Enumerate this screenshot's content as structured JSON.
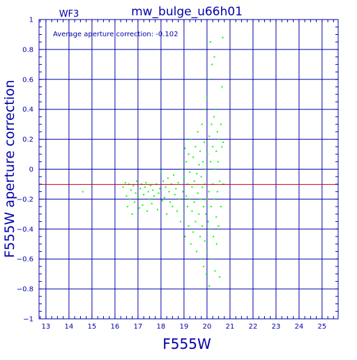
{
  "chart_data": {
    "type": "scatter",
    "title": "mw_bulge_u66h01",
    "subtitle": "WF3",
    "xlabel": "F555W",
    "ylabel": "F555W aperture correction",
    "annotation": "Average aperture correction: -0.102",
    "xlim": [
      12.7,
      25.7
    ],
    "ylim": [
      -1,
      1
    ],
    "xticks": [
      13,
      14,
      15,
      16,
      17,
      18,
      19,
      20,
      21,
      22,
      23,
      24,
      25
    ],
    "yticks": [
      -1,
      -0.8,
      -0.6,
      -0.4,
      -0.2,
      0,
      0.2,
      0.4,
      0.6,
      0.8,
      1
    ],
    "ytick_labels": [
      "−1",
      "−0.8",
      "−0.6",
      "−0.4",
      "−0.2",
      "0",
      "0.2",
      "0.4",
      "0.6",
      "0.8",
      "1"
    ],
    "grid": true,
    "reference_line": {
      "y": -0.102,
      "color": "#cc0000"
    },
    "colors": {
      "axes": "#0000aa",
      "points": "#00ff00",
      "reference": "#cc0000"
    },
    "series": [
      {
        "points": [
          [
            14.6,
            -0.15
          ],
          [
            16.35,
            -0.12
          ],
          [
            16.45,
            -0.09
          ],
          [
            16.5,
            -0.18
          ],
          [
            16.55,
            -0.25
          ],
          [
            16.6,
            -0.1
          ],
          [
            16.65,
            -0.2
          ],
          [
            16.7,
            -0.14
          ],
          [
            16.75,
            -0.3
          ],
          [
            16.8,
            -0.11
          ],
          [
            16.85,
            -0.22
          ],
          [
            16.9,
            -0.16
          ],
          [
            16.95,
            -0.08
          ],
          [
            17.0,
            -0.19
          ],
          [
            17.05,
            -0.26
          ],
          [
            17.1,
            -0.13
          ],
          [
            17.15,
            -0.1
          ],
          [
            17.2,
            -0.24
          ],
          [
            17.25,
            -0.17
          ],
          [
            17.3,
            -0.12
          ],
          [
            17.35,
            -0.09
          ],
          [
            17.4,
            -0.28
          ],
          [
            17.45,
            -0.15
          ],
          [
            17.5,
            -0.2
          ],
          [
            17.55,
            -0.11
          ],
          [
            17.6,
            -0.23
          ],
          [
            17.65,
            -0.14
          ],
          [
            17.7,
            -0.18
          ],
          [
            17.8,
            -0.1
          ],
          [
            17.85,
            -0.27
          ],
          [
            17.9,
            -0.16
          ],
          [
            17.95,
            -0.13
          ],
          [
            18.0,
            -0.02
          ],
          [
            18.05,
            -0.21
          ],
          [
            18.1,
            -0.08
          ],
          [
            18.15,
            -0.19
          ],
          [
            18.2,
            -0.12
          ],
          [
            18.25,
            -0.3
          ],
          [
            18.3,
            -0.06
          ],
          [
            18.35,
            -0.15
          ],
          [
            18.4,
            -0.22
          ],
          [
            18.45,
            -0.1
          ],
          [
            18.5,
            -0.25
          ],
          [
            18.55,
            -0.04
          ],
          [
            18.6,
            -0.17
          ],
          [
            18.65,
            -0.13
          ],
          [
            18.7,
            -0.28
          ],
          [
            18.75,
            -0.09
          ],
          [
            18.8,
            -0.2
          ],
          [
            18.85,
            -0.35
          ],
          [
            18.9,
            0.0
          ],
          [
            18.95,
            -0.15
          ],
          [
            19.0,
            -0.05
          ],
          [
            19.0,
            -0.3
          ],
          [
            19.05,
            0.14
          ],
          [
            19.05,
            -0.45
          ],
          [
            19.1,
            -0.18
          ],
          [
            19.1,
            0.05
          ],
          [
            19.15,
            -0.25
          ],
          [
            19.15,
            -0.1
          ],
          [
            19.2,
            0.1
          ],
          [
            19.2,
            -0.38
          ],
          [
            19.25,
            -0.2
          ],
          [
            19.25,
            -0.02
          ],
          [
            19.3,
            0.2
          ],
          [
            19.3,
            -0.5
          ],
          [
            19.35,
            -0.12
          ],
          [
            19.35,
            -0.28
          ],
          [
            19.4,
            0.08
          ],
          [
            19.4,
            -0.42
          ],
          [
            19.45,
            -0.08
          ],
          [
            19.45,
            -0.22
          ],
          [
            19.5,
            0.15
          ],
          [
            19.5,
            -0.35
          ],
          [
            19.55,
            -0.03
          ],
          [
            19.55,
            -0.55
          ],
          [
            19.6,
            0.25
          ],
          [
            19.6,
            -0.16
          ],
          [
            19.65,
            -0.3
          ],
          [
            19.65,
            0.03
          ],
          [
            19.7,
            -0.45
          ],
          [
            19.7,
            0.12
          ],
          [
            19.72,
            -0.2
          ],
          [
            19.75,
            -0.6
          ],
          [
            19.75,
            -0.05
          ],
          [
            19.78,
            0.3
          ],
          [
            19.8,
            -0.38
          ],
          [
            19.8,
            -0.12
          ],
          [
            19.82,
            0.05
          ],
          [
            19.85,
            -0.25
          ],
          [
            19.85,
            -0.65
          ],
          [
            19.88,
            0.18
          ],
          [
            19.9,
            -0.48
          ],
          [
            19.9,
            -0.1
          ],
          [
            19.92,
            0.4
          ],
          [
            19.95,
            -0.3
          ],
          [
            19.95,
            0.0
          ],
          [
            19.97,
            -0.7
          ],
          [
            20.0,
            -0.2
          ],
          [
            20.0,
            0.48
          ],
          [
            20.0,
            -0.55
          ],
          [
            20.02,
            0.1
          ],
          [
            20.05,
            -0.35
          ],
          [
            20.05,
            0.6
          ],
          [
            20.08,
            -0.15
          ],
          [
            20.1,
            0.22
          ],
          [
            20.1,
            -0.78
          ],
          [
            20.12,
            -0.4
          ],
          [
            20.15,
            0.05
          ],
          [
            20.15,
            0.85
          ],
          [
            20.18,
            -0.25
          ],
          [
            20.2,
            0.3
          ],
          [
            20.2,
            -0.6
          ],
          [
            20.22,
            0.7
          ],
          [
            20.25,
            -0.1
          ],
          [
            20.25,
            0.15
          ],
          [
            20.28,
            -0.45
          ],
          [
            20.3,
            0.35
          ],
          [
            20.3,
            -0.2
          ],
          [
            20.32,
            0.75
          ],
          [
            20.35,
            -0.68
          ],
          [
            20.35,
            0.0
          ],
          [
            20.38,
            0.4
          ],
          [
            20.4,
            -0.32
          ],
          [
            20.4,
            0.12
          ],
          [
            20.42,
            -0.5
          ],
          [
            20.45,
            0.25
          ],
          [
            20.45,
            -0.15
          ],
          [
            20.48,
            0.05
          ],
          [
            20.5,
            -0.38
          ],
          [
            20.5,
            0.2
          ],
          [
            20.55,
            -0.08
          ],
          [
            20.55,
            -0.72
          ],
          [
            20.6,
            0.3
          ],
          [
            20.6,
            -0.25
          ],
          [
            20.65,
            0.15
          ],
          [
            20.65,
            0.55
          ],
          [
            20.68,
            0.88
          ],
          [
            20.7,
            0.18
          ],
          [
            20.72,
            -0.1
          ]
        ]
      }
    ]
  }
}
